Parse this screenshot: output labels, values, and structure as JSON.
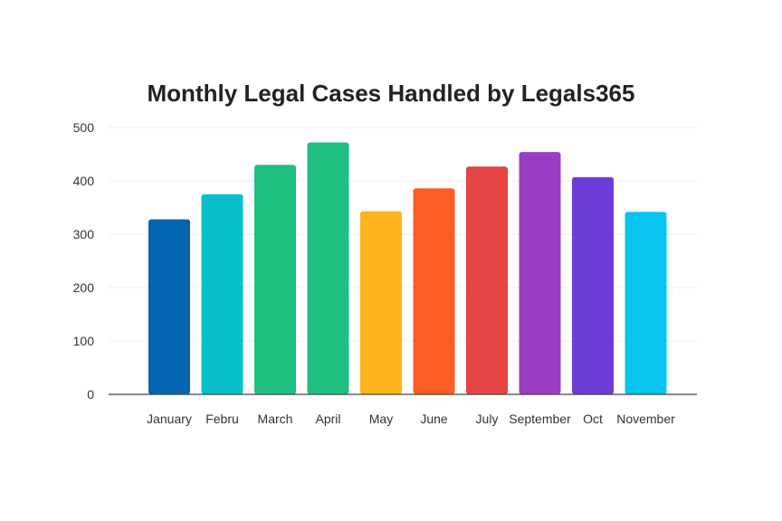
{
  "chart_data": {
    "type": "bar",
    "title": "Monthly Legal Cases Handled by Legals365",
    "xlabel": "",
    "ylabel": "",
    "categories": [
      "January",
      "Febru",
      "March",
      "April",
      "May",
      "June",
      "July",
      "September",
      "Oct",
      "November"
    ],
    "values": [
      328,
      375,
      430,
      472,
      343,
      386,
      427,
      454,
      407,
      342
    ],
    "colors": [
      "#0565b0",
      "#07bfc9",
      "#1fbf82",
      "#1fbf82",
      "#fdb31b",
      "#fd5c26",
      "#e64444",
      "#9b3cc4",
      "#6a3dd6",
      "#08c5ef"
    ],
    "ylim": [
      0,
      500
    ],
    "yticks": [
      0,
      100,
      200,
      300,
      400,
      500
    ],
    "grid": true,
    "legend": "none"
  }
}
